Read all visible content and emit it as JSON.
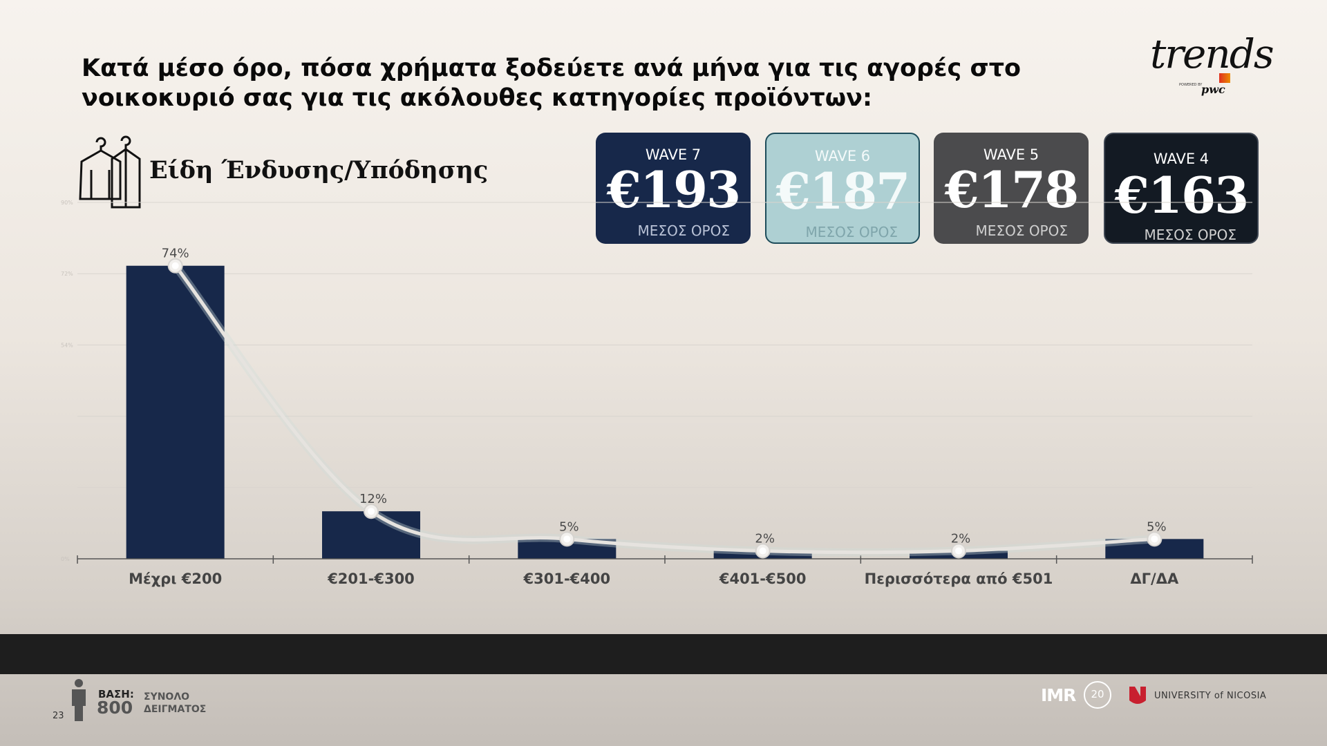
{
  "title": "Κατά μέσο όρο, πόσα χρήματα ξοδεύετε ανά μήνα για τις αγορές στο νοικοκυριό σας για τις ακόλουθες κατηγορίες προϊόντων:",
  "logo": {
    "word": "trends",
    "powered": "POWERED BY",
    "pwc": "pwc"
  },
  "category": {
    "label": "Είδη Ένδυσης/Υπόδησης",
    "icon": "clothes-on-hangers-icon"
  },
  "waves": [
    {
      "label": "WAVE 7",
      "value": "€193",
      "sub": "ΜΕΣΟΣ ΟΡΟΣ",
      "color": "#17284a"
    },
    {
      "label": "WAVE 6",
      "value": "€187",
      "sub": "ΜΕΣΟΣ ΟΡΟΣ",
      "color": "#aed0d3"
    },
    {
      "label": "WAVE 5",
      "value": "€178",
      "sub": "ΜΕΣΟΣ ΟΡΟΣ",
      "color": "#4b4b4d"
    },
    {
      "label": "WAVE 4",
      "value": "€163",
      "sub": "ΜΕΣΟΣ ΟΡΟΣ",
      "color": "#131a23"
    }
  ],
  "chart_data": {
    "type": "bar",
    "categories": [
      "Μέχρι €200",
      "€201-€300",
      "€301-€400",
      "€401-€500",
      "Περισσότερα από €501",
      "ΔΓ/ΔΑ"
    ],
    "values": [
      74,
      12,
      5,
      2,
      2,
      5
    ],
    "data_labels": [
      "74%",
      "12%",
      "5%",
      "2%",
      "2%",
      "5%"
    ],
    "line_values": [
      74,
      12,
      5,
      2,
      2,
      5
    ],
    "ylim": [
      0,
      90
    ],
    "yticks": [
      0,
      18,
      36,
      54,
      72,
      90
    ],
    "ytick_labels": [
      "0%",
      "",
      "",
      "54%",
      "72%",
      "90%"
    ],
    "grid": true,
    "bar_color": "#17284a",
    "line_color": "#e6e3df"
  },
  "footer": {
    "base_label": "ΒΑΣΗ:",
    "base_count": "800",
    "base_desc_1": "ΣΥΝΟΛΟ",
    "base_desc_2": "ΔΕΙΓΜΑΤΟΣ",
    "page_number": "23",
    "imr": "IMR",
    "imr_badge": "20",
    "university": "UNIVERSITY of NICOSIA"
  }
}
